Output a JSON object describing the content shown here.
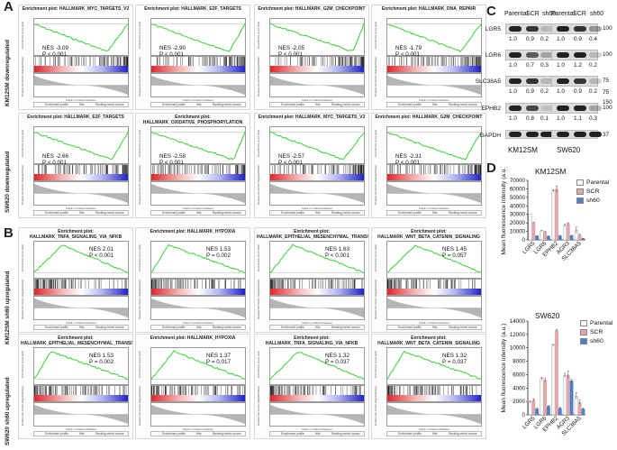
{
  "panels": {
    "a": "A",
    "b": "B",
    "c": "C",
    "d": "D"
  },
  "row_labels": {
    "a_top": "KM12SM downregulated",
    "a_bottom": "SW620 downregulated",
    "b_top": "KM12SM sh60 upregulated",
    "b_bottom": "SW620 sh60 upregulated"
  },
  "gsea_common": {
    "ylabel": "Enrichment score (ES)",
    "ylabel2": "Ranked list metric (Signal2Noise)",
    "xlabel": "Rank in Ordered Dataset",
    "legend_profile": "Enrichment profile",
    "legend_hits": "Hits",
    "legend_ranking": "Ranking metric scores"
  },
  "gsea_plots": [
    {
      "title": "Enrichment plot: HALLMARK_MYC_TARGETS_V2",
      "nes": "NES -3.09",
      "p": "P < 0.001",
      "direction": "down"
    },
    {
      "title": "Enrichment plot: HALLMARK_E2F_TARGETS",
      "nes": "NES -2.90",
      "p": "P < 0.001",
      "direction": "down"
    },
    {
      "title": "Enrichment plot: HALLMARK_G2M_CHECKPOINT",
      "nes": "NES -2.05",
      "p": "P < 0.001",
      "direction": "down"
    },
    {
      "title": "Enrichment plot: HALLMARK_DNA_REPAIR",
      "nes": "NES -1.79",
      "p": "P < 0.001",
      "direction": "down"
    },
    {
      "title": "Enrichment plot: HALLMARK_E2F_TARGETS",
      "nes": "NES -2.66",
      "p": "P < 0.001",
      "direction": "down"
    },
    {
      "title": "Enrichment plot: HALLMARK_OXIDATIVE_PHOSPHORYLATION",
      "nes": "NES -2.58",
      "p": "P < 0.001",
      "direction": "down"
    },
    {
      "title": "Enrichment plot: HALLMARK_MYC_TARGETS_V2",
      "nes": "NES -2.57",
      "p": "P < 0.001",
      "direction": "down"
    },
    {
      "title": "Enrichment plot: HALLMARK_G2M_CHECKPOINT",
      "nes": "NES -2.31",
      "p": "P < 0.001",
      "direction": "down"
    },
    {
      "title": "Enrichment plot: HALLMARK_TNFA_SIGNALING_VIA_NFKB",
      "nes": "NES 2.01",
      "p": "P < 0.001",
      "direction": "up"
    },
    {
      "title": "Enrichment plot: HALLMARK_HYPOXIA",
      "nes": "NES 1.53",
      "p": "P = 0.002",
      "direction": "up"
    },
    {
      "title": "Enrichment plot: HALLMARK_EPITHELIAL_MESENCHYMAL_TRANSITION",
      "nes": "NES 1.63",
      "p": "P < 0.001",
      "direction": "up"
    },
    {
      "title": "Enrichment plot: HALLMARK_WNT_BETA_CATENIN_SIGNALING",
      "nes": "NES 1.45",
      "p": "P = 0.057",
      "direction": "up"
    },
    {
      "title": "Enrichment plot: HALLMARK_EPITHELIAL_MESENCHYMAL_TRANSITION",
      "nes": "NES 1.53",
      "p": "P = 0.002",
      "direction": "up"
    },
    {
      "title": "Enrichment plot: HALLMARK_HYPOXIA",
      "nes": "NES 1.37",
      "p": "P = 0.017",
      "direction": "up"
    },
    {
      "title": "Enrichment plot: HALLMARK_TNFA_SIGNALING_VIA_NFKB",
      "nes": "NES 1.32",
      "p": "P = 0.037",
      "direction": "up"
    },
    {
      "title": "Enrichment plot: HALLMARK_WNT_BETA_CATENIN_SIGNALING",
      "nes": "NES 1.32",
      "p": "P = 0.037",
      "direction": "up"
    }
  ],
  "western_blot": {
    "samples": [
      "Parental",
      "SCR",
      "sh60",
      "Parental",
      "SCR",
      "sh60"
    ],
    "cell_lines": [
      "KM12SM",
      "SW620"
    ],
    "proteins": [
      {
        "name": "LGR5",
        "ratios_km": [
          "1.0",
          "0.9",
          "0.2"
        ],
        "ratios_sw": [
          "1.0",
          "0.9",
          "0.4"
        ],
        "mw": "100"
      },
      {
        "name": "LGR6",
        "ratios_km": [
          "1.0",
          "0.7",
          "0.3"
        ],
        "ratios_sw": [
          "1.0",
          "1.2",
          "0.2"
        ],
        "mw": "100"
      },
      {
        "name": "SLC38A5",
        "ratios_km": [
          "1.0",
          "0.9",
          "0.2"
        ],
        "ratios_sw": [
          "1.0",
          "0.9",
          "0.2"
        ],
        "mw": "75"
      },
      {
        "name": "EPHB2",
        "ratios_km": [
          "1.0",
          "0.8",
          "0.1"
        ],
        "ratios_sw": [
          "1.0",
          "1.1",
          "0.3"
        ],
        "mw": "100"
      },
      {
        "name": "GAPDH",
        "ratios_km": [],
        "ratios_sw": [],
        "mw": "37"
      }
    ],
    "mw_extra": [
      "75",
      "150"
    ]
  },
  "colors": {
    "parental": "#f6f6f6",
    "scr": "#e3a6a9",
    "sh60": "#4f80c4",
    "es_line": "#3ed23a"
  },
  "chart_data": [
    {
      "type": "bar",
      "title": "KM12SM",
      "ylabel": "Mean fluorescence intensity (a.u.)",
      "categories": [
        "LGR5",
        "LGR6",
        "EPHB2",
        "AGR3",
        "SLC38A5"
      ],
      "series": [
        {
          "name": "Parental",
          "values": [
            30000,
            10700,
            57500,
            17000,
            11500
          ]
        },
        {
          "name": "SCR",
          "values": [
            20500,
            9700,
            60000,
            19500,
            5800
          ]
        },
        {
          "name": "sh60",
          "values": [
            4800,
            4500,
            5000,
            5200,
            1600
          ]
        }
      ],
      "errors": [
        [
          0,
          500,
          1500,
          1200,
          3500
        ],
        [
          500,
          300,
          3500,
          700,
          1000
        ],
        [
          200,
          200,
          300,
          300,
          200
        ]
      ],
      "yticks": [
        0,
        10000,
        20000,
        30000,
        40000,
        50000,
        60000,
        70000
      ],
      "ylim": [
        0,
        70000
      ]
    },
    {
      "type": "bar",
      "title": "SW620",
      "ylabel": "Mean fluorescence intensity (a.u.)",
      "categories": [
        "LGR5",
        "LGR6",
        "EPHB2",
        "AGR3",
        "SLC38A5"
      ],
      "series": [
        {
          "name": "Parental",
          "values": [
            1900,
            5400,
            10400,
            5900,
            2800
          ]
        },
        {
          "name": "SCR",
          "values": [
            2200,
            5200,
            12600,
            6000,
            1900
          ]
        },
        {
          "name": "sh60",
          "values": [
            900,
            1300,
            1000,
            5100,
            900
          ]
        }
      ],
      "errors": [
        [
          150,
          200,
          100,
          300,
          500
        ],
        [
          200,
          250,
          150,
          500,
          300
        ],
        [
          100,
          100,
          100,
          200,
          100
        ]
      ],
      "yticks": [
        0,
        2000,
        4000,
        6000,
        8000,
        10000,
        12000,
        14000
      ],
      "ylim": [
        0,
        14000
      ]
    }
  ]
}
